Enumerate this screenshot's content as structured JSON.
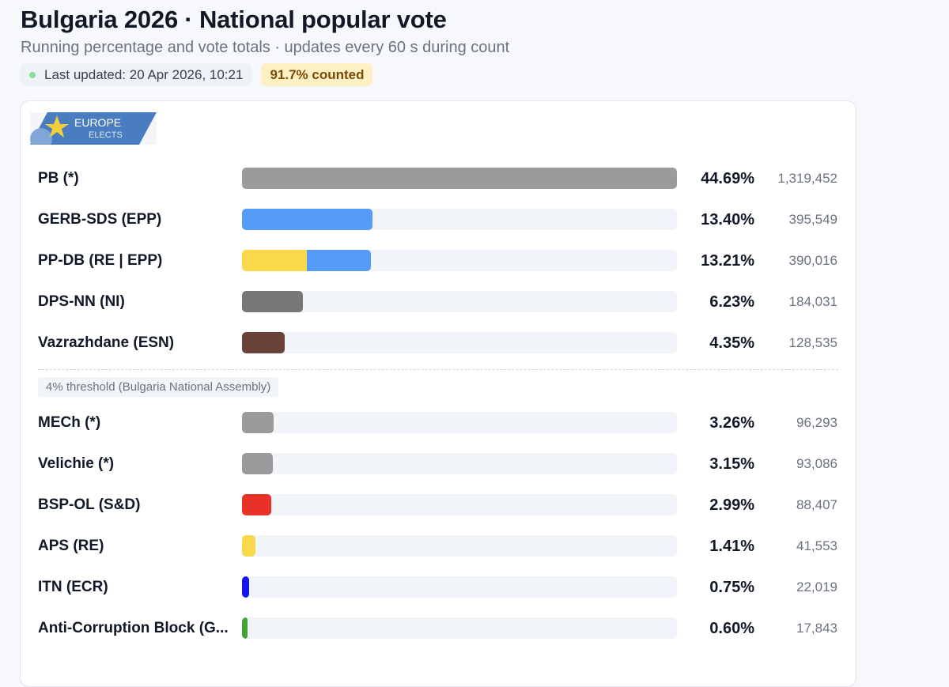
{
  "header": {
    "title": "Bulgaria 2026 · National popular vote",
    "subtitle": "Running percentage and vote totals · updates every 60 s during count",
    "last_updated": "Last updated: 20 Apr 2026, 10:21",
    "counted": "91.7% counted"
  },
  "logo": {
    "line1": "EUROPE",
    "line2": "ELECTS"
  },
  "threshold_label": "4% threshold (Bulgaria National Assembly)",
  "colors": {
    "gray": "#9b9b9b",
    "blue": "#559bf7",
    "yellow": "#f9d949",
    "darkgray": "#777777",
    "brown": "#6b4237",
    "red": "#e83227",
    "darkblue": "#1414f0",
    "green": "#43a332",
    "track": "#f1f4f8"
  },
  "chart_data": {
    "type": "bar",
    "orientation": "horizontal",
    "title": "Bulgaria 2026 · National popular vote",
    "xlim": [
      0,
      44.69
    ],
    "threshold": 4,
    "parties": [
      {
        "name": "PB (*)",
        "pct_label": "44.69%",
        "pct": 44.69,
        "votes": "1,319,452",
        "colors": [
          "#9b9b9b"
        ]
      },
      {
        "name": "GERB-SDS (EPP)",
        "pct_label": "13.40%",
        "pct": 13.4,
        "votes": "395,549",
        "colors": [
          "#559bf7"
        ]
      },
      {
        "name": "PP-DB (RE | EPP)",
        "pct_label": "13.21%",
        "pct": 13.21,
        "votes": "390,016",
        "colors": [
          "#f9d949",
          "#559bf7"
        ]
      },
      {
        "name": "DPS-NN (NI)",
        "pct_label": "6.23%",
        "pct": 6.23,
        "votes": "184,031",
        "colors": [
          "#777777"
        ]
      },
      {
        "name": "Vazrazhdane (ESN)",
        "pct_label": "4.35%",
        "pct": 4.35,
        "votes": "128,535",
        "colors": [
          "#6b4237"
        ]
      },
      {
        "name": "MECh (*)",
        "pct_label": "3.26%",
        "pct": 3.26,
        "votes": "96,293",
        "colors": [
          "#9b9b9b"
        ]
      },
      {
        "name": "Velichie (*)",
        "pct_label": "3.15%",
        "pct": 3.15,
        "votes": "93,086",
        "colors": [
          "#9b9b9b"
        ]
      },
      {
        "name": "BSP-OL (S&D)",
        "pct_label": "2.99%",
        "pct": 2.99,
        "votes": "88,407",
        "colors": [
          "#e83227"
        ]
      },
      {
        "name": "APS (RE)",
        "pct_label": "1.41%",
        "pct": 1.41,
        "votes": "41,553",
        "colors": [
          "#f9d949"
        ]
      },
      {
        "name": "ITN (ECR)",
        "pct_label": "0.75%",
        "pct": 0.75,
        "votes": "22,019",
        "colors": [
          "#1414f0"
        ]
      },
      {
        "name": "Anti-Corruption Block (G...",
        "pct_label": "0.60%",
        "pct": 0.6,
        "votes": "17,843",
        "colors": [
          "#43a332"
        ]
      }
    ]
  }
}
